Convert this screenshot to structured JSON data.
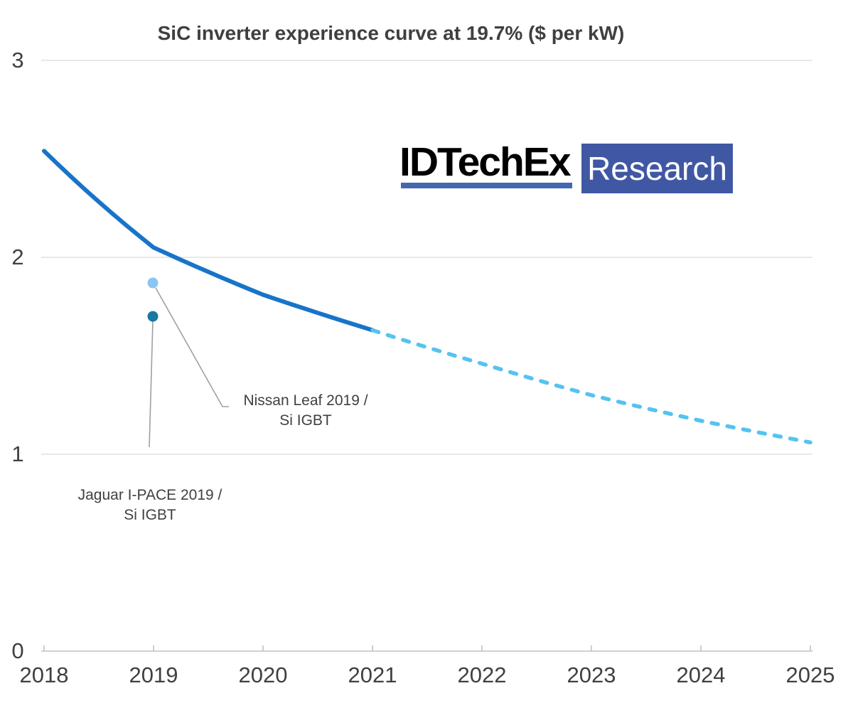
{
  "title": "SiC inverter experience curve at 19.7% ($ per kW)",
  "logo": {
    "brand": "IDTechEx",
    "badge": "Research"
  },
  "chart_data": {
    "type": "line",
    "title": "SiC inverter experience curve at 19.7% ($ per kW)",
    "unit": "$ per kW",
    "experience_rate": "19.7%",
    "xlabel": "",
    "ylabel": "",
    "xlim": [
      2018,
      2025
    ],
    "ylim": [
      0,
      3
    ],
    "grid": "horizontal",
    "legend_position": "none",
    "x_labels": [
      "2018",
      "2019",
      "2020",
      "2021",
      "2022",
      "2023",
      "2024",
      "2025"
    ],
    "y_tick_labels_top_to_bottom": [
      "3",
      "2",
      "1",
      "0"
    ],
    "series": [
      {
        "name": "SiC inverter cost - historic (solid)",
        "style": "solid",
        "color": "#1874c8",
        "x": [
          2018,
          2019,
          2020,
          2021
        ],
        "values": [
          2.54,
          2.05,
          1.81,
          1.63
        ]
      },
      {
        "name": "SiC inverter cost - forecast (dashed)",
        "style": "dashed",
        "color": "#55c3f0",
        "x": [
          2021,
          2022,
          2023,
          2024,
          2025
        ],
        "values": [
          1.63,
          1.46,
          1.3,
          1.17,
          1.06
        ]
      }
    ],
    "annotated_points": [
      {
        "lines": [
          "Nissan Leaf 2019 /",
          "Si IGBT"
        ],
        "x": 2019,
        "value": 1.87,
        "color": "#8cc5ef"
      },
      {
        "lines": [
          "Jaguar I-PACE 2019 /",
          "Si IGBT"
        ],
        "x": 2019,
        "value": 1.7,
        "color": "#1879a1"
      }
    ]
  },
  "colors": {
    "gridline": "#d9d9d9",
    "axis": "#c2c2c2",
    "leader": "#a0a0a0",
    "text": "#404040",
    "logo_badge_blue": "#4058a4",
    "logo_underline_blue": "#4368b0"
  }
}
